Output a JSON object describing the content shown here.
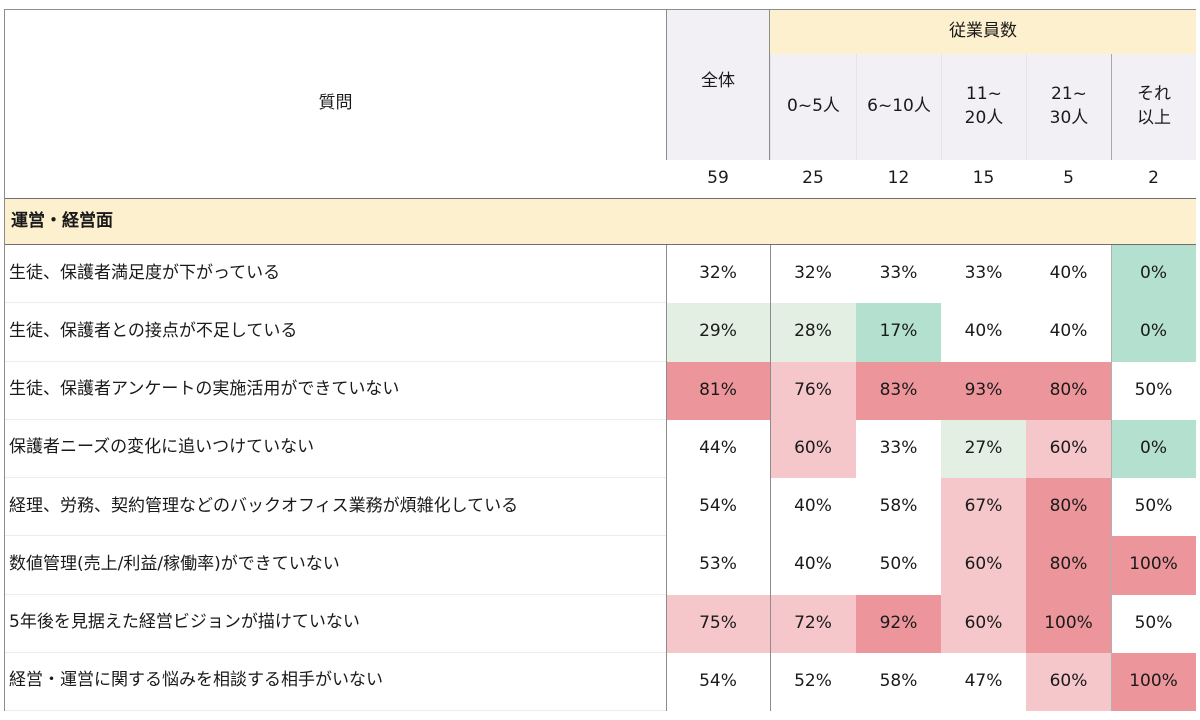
{
  "header": {
    "question_label": "質問",
    "total_label": "全体",
    "group_label": "従業員数",
    "columns": [
      {
        "label_line1": "0~5人",
        "label_line2": ""
      },
      {
        "label_line1": "6~10人",
        "label_line2": ""
      },
      {
        "label_line1": "11~",
        "label_line2": "20人"
      },
      {
        "label_line1": "21~",
        "label_line2": "30人"
      },
      {
        "label_line1": "それ",
        "label_line2": "以上"
      }
    ],
    "counts": [
      "59",
      "25",
      "12",
      "15",
      "5",
      "2"
    ]
  },
  "category": {
    "label": "運営・経営面"
  },
  "colors": {
    "header_yellow": "#fdf0cf",
    "header_gray": "#f2f0f4",
    "red_strong": "#ec959a",
    "red_light": "#f5c6ca",
    "green_strong": "#b3e0cf",
    "green_light": "#e2efe2",
    "white": "#ffffff"
  },
  "rows": [
    {
      "question": "生徒、保護者満足度が下がっている",
      "values": [
        "32%",
        "32%",
        "33%",
        "33%",
        "40%",
        "0%"
      ]
    },
    {
      "question": "生徒、保護者との接点が不足している",
      "values": [
        "29%",
        "28%",
        "17%",
        "40%",
        "40%",
        "0%"
      ]
    },
    {
      "question": "生徒、保護者アンケートの実施活用ができていない",
      "values": [
        "81%",
        "76%",
        "83%",
        "93%",
        "80%",
        "50%"
      ]
    },
    {
      "question": "保護者ニーズの変化に追いつけていない",
      "values": [
        "44%",
        "60%",
        "33%",
        "27%",
        "60%",
        "0%"
      ]
    },
    {
      "question": "経理、労務、契約管理などのバックオフィス業務が煩雑化している",
      "values": [
        "54%",
        "40%",
        "58%",
        "67%",
        "80%",
        "50%"
      ]
    },
    {
      "question": "数値管理(売上/利益/稼働率)ができていない",
      "values": [
        "53%",
        "40%",
        "50%",
        "60%",
        "80%",
        "100%"
      ]
    },
    {
      "question": "5年後を見据えた経営ビジョンが描けていない",
      "values": [
        "75%",
        "72%",
        "92%",
        "60%",
        "100%",
        "50%"
      ]
    },
    {
      "question": "経営・運営に関する悩みを相談する相手がいない",
      "values": [
        "54%",
        "52%",
        "58%",
        "47%",
        "60%",
        "100%"
      ]
    }
  ],
  "chart_data": {
    "type": "heatmap",
    "title": "運営・経営面",
    "xlabel": "従業員数",
    "categories": [
      "全体",
      "0~5人",
      "6~10人",
      "11~20人",
      "21~30人",
      "それ以上"
    ],
    "n": [
      59,
      25,
      12,
      15,
      5,
      2
    ],
    "rows": [
      "生徒、保護者満足度が下がっている",
      "生徒、保護者との接点が不足している",
      "生徒、保護者アンケートの実施活用ができていない",
      "保護者ニーズの変化に追いつけていない",
      "経理、労務、契約管理などのバックオフィス業務が煩雑化している",
      "数値管理(売上/利益/稼働率)ができていない",
      "5年後を見据えた経営ビジョンが描けていない",
      "経営・運営に関する悩みを相談する相手がいない"
    ],
    "values": [
      [
        32,
        32,
        33,
        33,
        40,
        0
      ],
      [
        29,
        28,
        17,
        40,
        40,
        0
      ],
      [
        81,
        76,
        83,
        93,
        80,
        50
      ],
      [
        44,
        60,
        33,
        27,
        60,
        0
      ],
      [
        54,
        40,
        58,
        67,
        80,
        50
      ],
      [
        53,
        40,
        50,
        60,
        80,
        100
      ],
      [
        75,
        72,
        92,
        60,
        100,
        50
      ],
      [
        54,
        52,
        58,
        47,
        60,
        100
      ]
    ],
    "unit": "%"
  }
}
